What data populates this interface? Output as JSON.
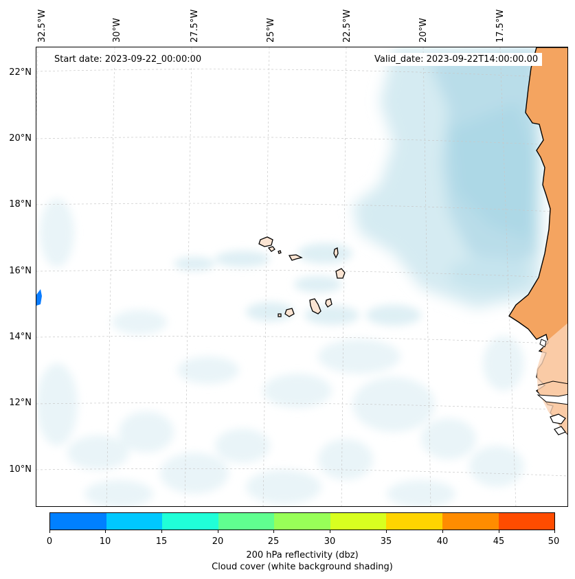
{
  "map": {
    "start_date": "Start date: 2023-09-22_00:00:00",
    "valid_date": "Valid_date: 2023-09-22T14:00:00.00",
    "lon_labels": [
      "32.5°W",
      "30°W",
      "27.5°W",
      "25°W",
      "22.5°W",
      "20°W",
      "17.5°W"
    ],
    "lat_labels": [
      "22°N",
      "20°N",
      "18°N",
      "16°N",
      "14°N",
      "12°N",
      "10°N"
    ],
    "land_color": "#f4a460",
    "cloud_color": "#add8e6",
    "coast_color": "#000000"
  },
  "colorbar": {
    "ticks": [
      "0",
      "10",
      "15",
      "20",
      "25",
      "30",
      "35",
      "40",
      "45",
      "50"
    ],
    "colors": [
      "#0080ff",
      "#00c8ff",
      "#20ffd8",
      "#60ff90",
      "#98ff58",
      "#d8ff20",
      "#ffd400",
      "#ff8c00",
      "#ff4c00"
    ],
    "label_line1": "200 hPa reflectivity (dbz)",
    "label_line2": "Cloud cover (white background shading)"
  }
}
